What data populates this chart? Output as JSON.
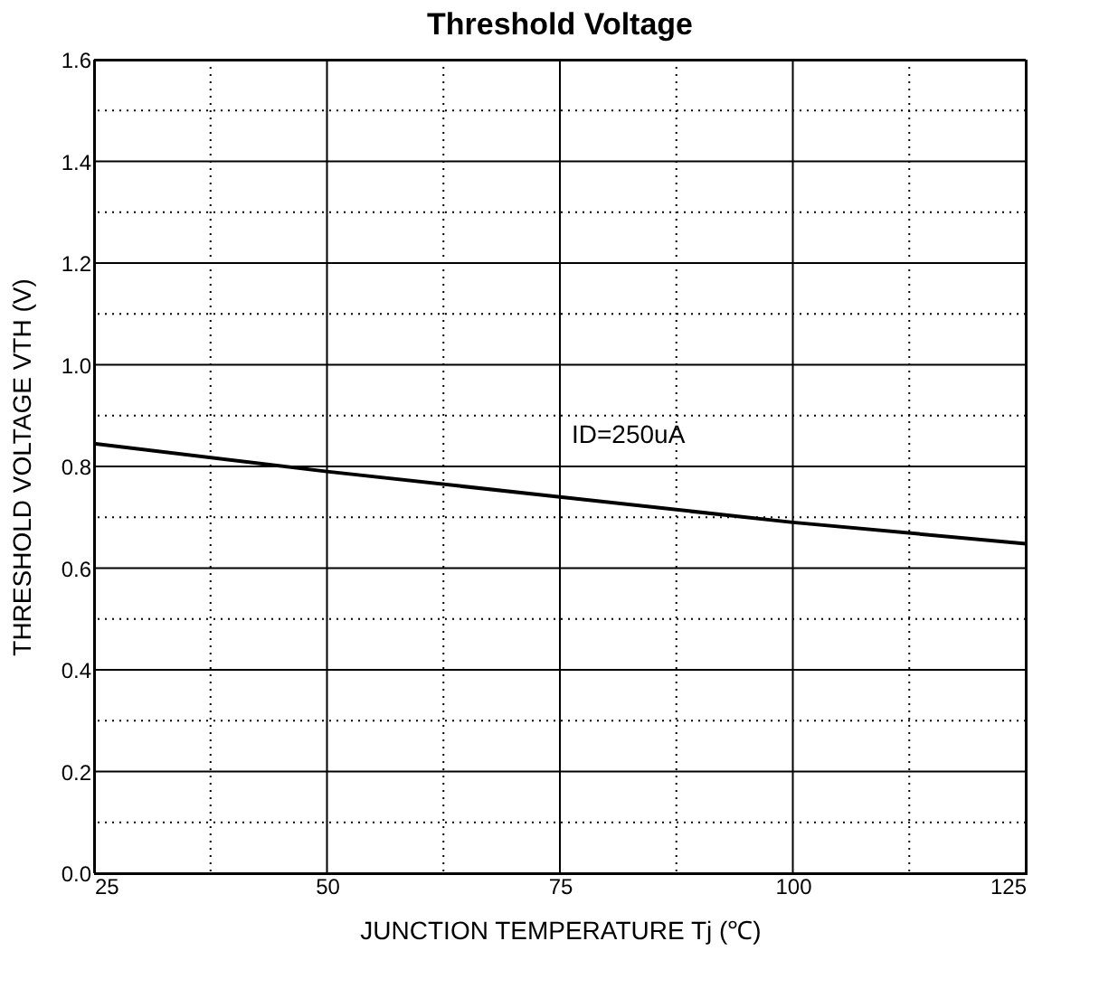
{
  "chart_data": {
    "type": "line",
    "title": "Threshold Voltage",
    "xlabel": "JUNCTION TEMPERATURE   Tj   (℃)",
    "ylabel": "THRESHOLD VOLTAGE   VTH   (V)",
    "x": [
      25,
      50,
      75,
      100,
      125
    ],
    "series": [
      {
        "color": "#000000",
        "values": [
          0.845,
          0.79,
          0.74,
          0.69,
          0.648
        ]
      }
    ],
    "xlim": [
      25,
      125
    ],
    "ylim": [
      0,
      1.6
    ],
    "xticks": [
      25,
      {
        "value": 37.5,
        "label": null
      },
      50,
      {
        "value": 62.5,
        "label": null
      },
      75,
      {
        "value": 87.5,
        "label": null
      },
      100,
      {
        "value": 112.5,
        "label": null
      },
      125
    ],
    "yticks": [
      {
        "value": 0,
        "label": "0.0"
      },
      {
        "value": 0.1,
        "label": null
      },
      0.2,
      {
        "value": 0.3,
        "label": null
      },
      0.4,
      {
        "value": 0.5,
        "label": null
      },
      0.6,
      {
        "value": 0.7,
        "label": null
      },
      0.8,
      {
        "value": 0.9,
        "label": null
      },
      {
        "value": 1,
        "label": "1.0"
      },
      {
        "value": 1.1,
        "label": null
      },
      1.2,
      {
        "value": 1.3,
        "label": null
      },
      1.4,
      {
        "value": 1.5,
        "label": null
      },
      1.6
    ],
    "grid": true,
    "legend": false,
    "marker": "none",
    "line_style": "solid",
    "annotations": [
      "ID=250uA"
    ]
  }
}
